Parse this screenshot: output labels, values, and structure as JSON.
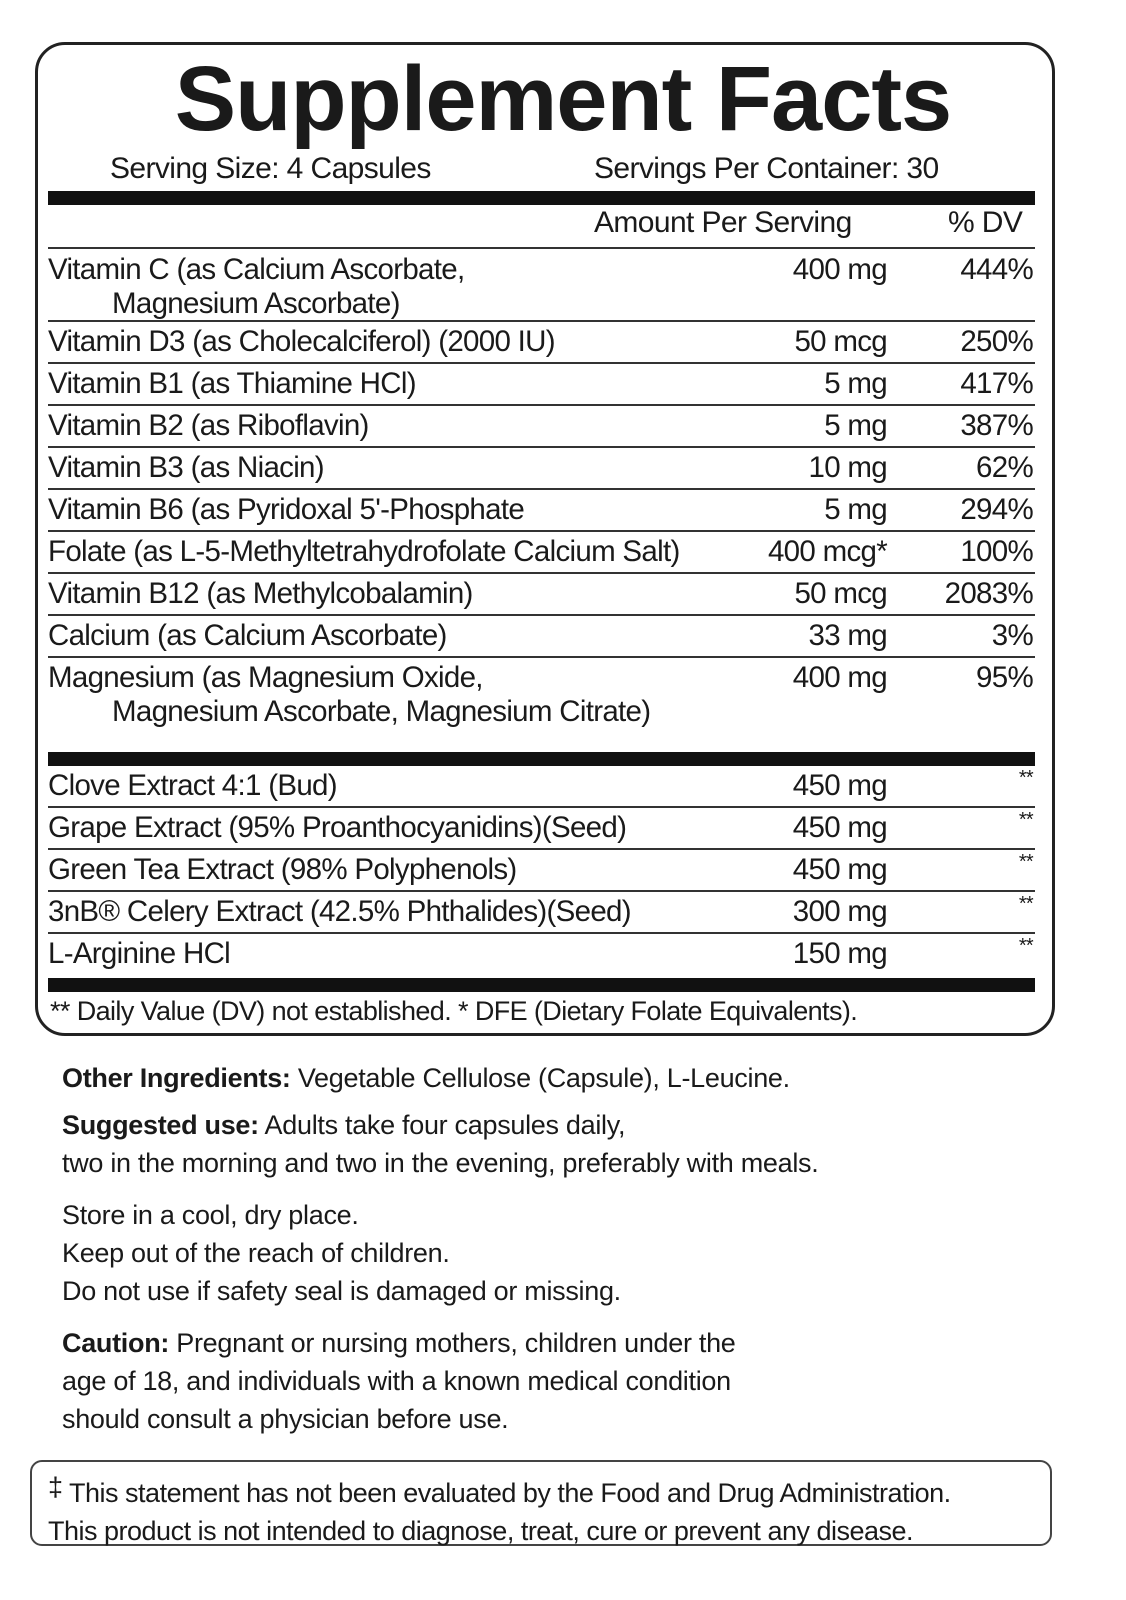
{
  "title": "Supplement Facts",
  "serving_size": "Serving Size: 4 Capsules",
  "servings_per_container": "Servings Per Container: 30",
  "header": {
    "amount": "Amount Per Serving",
    "dv": "% DV"
  },
  "vitamins": [
    {
      "name": "Vitamin C (as Calcium Ascorbate,",
      "name2": "Magnesium Ascorbate)",
      "amount": "400 mg",
      "dv": "444%"
    },
    {
      "name": "Vitamin D3 (as Cholecalciferol) (2000 IU)",
      "amount": "50 mcg",
      "dv": "250%"
    },
    {
      "name": "Vitamin B1 (as Thiamine HCl)",
      "amount": "5 mg",
      "dv": "417%"
    },
    {
      "name": "Vitamin B2 (as Riboflavin)",
      "amount": "5 mg",
      "dv": "387%"
    },
    {
      "name": "Vitamin B3 (as Niacin)",
      "amount": "10 mg",
      "dv": "62%"
    },
    {
      "name": "Vitamin B6 (as Pyridoxal 5'-Phosphate",
      "amount": "5 mg",
      "dv": "294%"
    },
    {
      "name": "Folate (as L-5-Methyltetrahydrofolate Calcium Salt)",
      "amount": "400 mcg*",
      "dv": "100%"
    },
    {
      "name": "Vitamin B12 (as Methylcobalamin)",
      "amount": "50 mcg",
      "dv": "2083%"
    },
    {
      "name": "Calcium (as Calcium Ascorbate)",
      "amount": "33 mg",
      "dv": "3%"
    },
    {
      "name": "Magnesium (as Magnesium Oxide,",
      "name2": "Magnesium Ascorbate, Magnesium Citrate)",
      "amount": "400 mg",
      "dv": "95%"
    }
  ],
  "extracts": [
    {
      "name": "Clove Extract 4:1 (Bud)",
      "amount": "450 mg",
      "dv": "**"
    },
    {
      "name": "Grape Extract (95% Proanthocyanidins)(Seed)",
      "amount": "450 mg",
      "dv": "**"
    },
    {
      "name": "Green Tea Extract (98% Polyphenols)",
      "amount": "450 mg",
      "dv": "**"
    },
    {
      "name": "3nB® Celery Extract (42.5% Phthalides)(Seed)",
      "amount": "300 mg",
      "dv": "**"
    },
    {
      "name": "L-Arginine HCl",
      "amount": "150 mg",
      "dv": "**"
    }
  ],
  "footnote": "** Daily Value (DV) not established. * DFE (Dietary Folate Equivalents).",
  "other": {
    "label": "Other Ingredients:",
    "text": " Vegetable Cellulose (Capsule), L-Leucine."
  },
  "suggested": {
    "label": "Suggested use:",
    "line1": " Adults take four capsules daily,",
    "line2": "two in the morning and two in the evening, preferably with meals."
  },
  "storage": [
    "Store in a cool, dry place.",
    "Keep out of the reach of children.",
    "Do not use if safety seal is damaged or missing."
  ],
  "caution": {
    "label": "Caution:",
    "line1": " Pregnant or nursing mothers, children under the",
    "line2": "age of 18, and individuals with a known medical condition",
    "line3": "should consult a physician before use."
  },
  "disclaimer": {
    "mark": "‡",
    "line1": " This statement has not been evaluated by the Food and Drug Administration.",
    "line2": "This product is not intended to diagnose, treat, cure or prevent any disease."
  }
}
